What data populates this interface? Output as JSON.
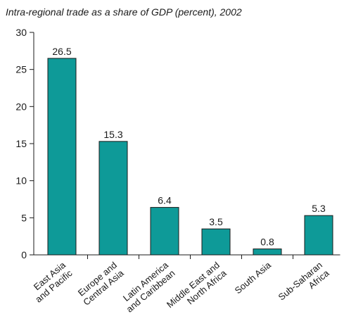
{
  "chart_data": {
    "type": "bar",
    "title": "Intra-regional trade as a share of GDP (percent), 2002",
    "xlabel": "",
    "ylabel": "",
    "categories": [
      [
        "East Asia",
        "and Pacific"
      ],
      [
        "Europe and",
        "Central Asia"
      ],
      [
        "Latin America",
        "and Caribbean"
      ],
      [
        "Middle East and",
        "North Africa"
      ],
      [
        "South Asia"
      ],
      [
        "Sub-Saharan",
        "Africa"
      ]
    ],
    "values": [
      26.5,
      15.3,
      6.4,
      3.5,
      0.8,
      5.3
    ],
    "value_labels": [
      "26.5",
      "15.3",
      "6.4",
      "3.5",
      "0.8",
      "5.3"
    ],
    "ylim": [
      0,
      30
    ],
    "yticks": [
      0,
      5,
      10,
      15,
      20,
      25,
      30
    ],
    "grid": false,
    "bar_color": "#0e9a98",
    "bar_stroke": "#1a1a1a"
  }
}
